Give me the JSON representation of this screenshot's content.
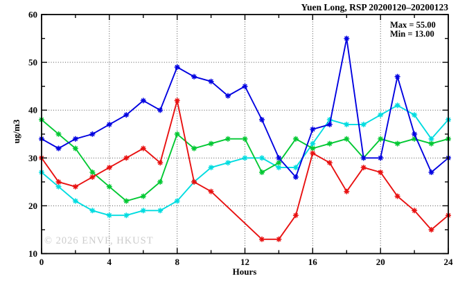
{
  "title": "Yuen Long, RSP 20200120–20200123",
  "legend": {
    "max_label": "Max = 55.00",
    "min_label": "Min = 13.00"
  },
  "watermark": "© 2026 ENVF, HKUST",
  "chart_data": {
    "type": "line",
    "title": "Yuen Long, RSP 20200120–20200123",
    "xlabel": "Hours",
    "ylabel": "ug/m3",
    "xlim": [
      0,
      24
    ],
    "ylim": [
      10,
      60
    ],
    "x_major_ticks": [
      0,
      4,
      8,
      12,
      16,
      20,
      24
    ],
    "x_minor_ticks": [
      2,
      6,
      10,
      14,
      18,
      22
    ],
    "y_major_ticks": [
      10,
      20,
      30,
      40,
      50,
      60
    ],
    "y_minor_ticks": [
      15,
      25,
      35,
      45,
      55
    ],
    "x_gridlines": [
      4,
      8,
      12,
      16,
      20
    ],
    "y_gridlines": [
      20,
      30,
      40,
      50
    ],
    "grid": "dotted",
    "legend_position": "top-right-inside",
    "marker": "asterisk",
    "stats": {
      "max": 55.0,
      "min": 13.0
    },
    "x": [
      0,
      1,
      2,
      3,
      4,
      5,
      6,
      7,
      8,
      9,
      10,
      11,
      12,
      13,
      14,
      15,
      16,
      17,
      18,
      19,
      20,
      21,
      22,
      23,
      24
    ],
    "series": [
      {
        "name": "cyan",
        "color": "#00dce0",
        "values": [
          27,
          24,
          21,
          19,
          18,
          18,
          19,
          19,
          21,
          25,
          28,
          29,
          30,
          30,
          28,
          28,
          33,
          38,
          37,
          37,
          39,
          41,
          39,
          34,
          38
        ]
      },
      {
        "name": "green",
        "color": "#00c832",
        "values": [
          38,
          35,
          32,
          27,
          24,
          21,
          22,
          25,
          35,
          32,
          33,
          34,
          34,
          27,
          29,
          34,
          32,
          33,
          34,
          30,
          34,
          33,
          34,
          33,
          34
        ]
      },
      {
        "name": "red",
        "color": "#e81010",
        "values": [
          30,
          25,
          24,
          26,
          28,
          30,
          32,
          29,
          42,
          25,
          23,
          null,
          null,
          13,
          13,
          18,
          31,
          29,
          23,
          28,
          27,
          22,
          19,
          15,
          18
        ]
      },
      {
        "name": "blue",
        "color": "#0000e0",
        "values": [
          34,
          32,
          34,
          35,
          37,
          39,
          42,
          40,
          49,
          47,
          46,
          43,
          45,
          38,
          30,
          26,
          36,
          37,
          55,
          30,
          30,
          47,
          35,
          27,
          30
        ]
      }
    ]
  }
}
